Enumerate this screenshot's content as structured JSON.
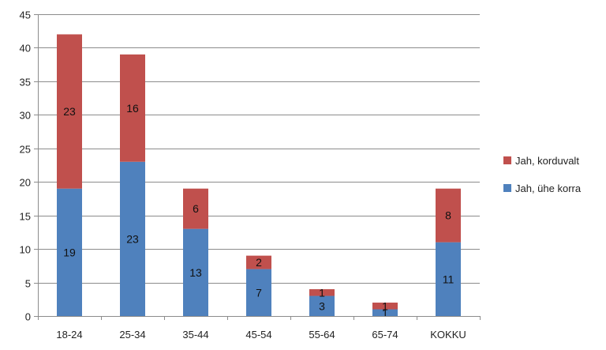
{
  "chart_data": {
    "type": "bar",
    "stacked": true,
    "categories": [
      "18-24",
      "25-34",
      "35-44",
      "45-54",
      "55-64",
      "65-74",
      "KOKKU"
    ],
    "series": [
      {
        "name": "Jah, ühe korra",
        "values": [
          19,
          23,
          13,
          7,
          3,
          1,
          11
        ],
        "color": "#4f81bd"
      },
      {
        "name": "Jah, korduvalt",
        "values": [
          23,
          16,
          6,
          2,
          1,
          1,
          8
        ],
        "color": "#c0504d"
      }
    ],
    "ylim": [
      0,
      45
    ],
    "yticks": [
      0,
      5,
      10,
      15,
      20,
      25,
      30,
      35,
      40,
      45
    ],
    "grid": true,
    "data_labels": true,
    "legend_position": "right",
    "title": "",
    "xlabel": "",
    "ylabel": ""
  }
}
